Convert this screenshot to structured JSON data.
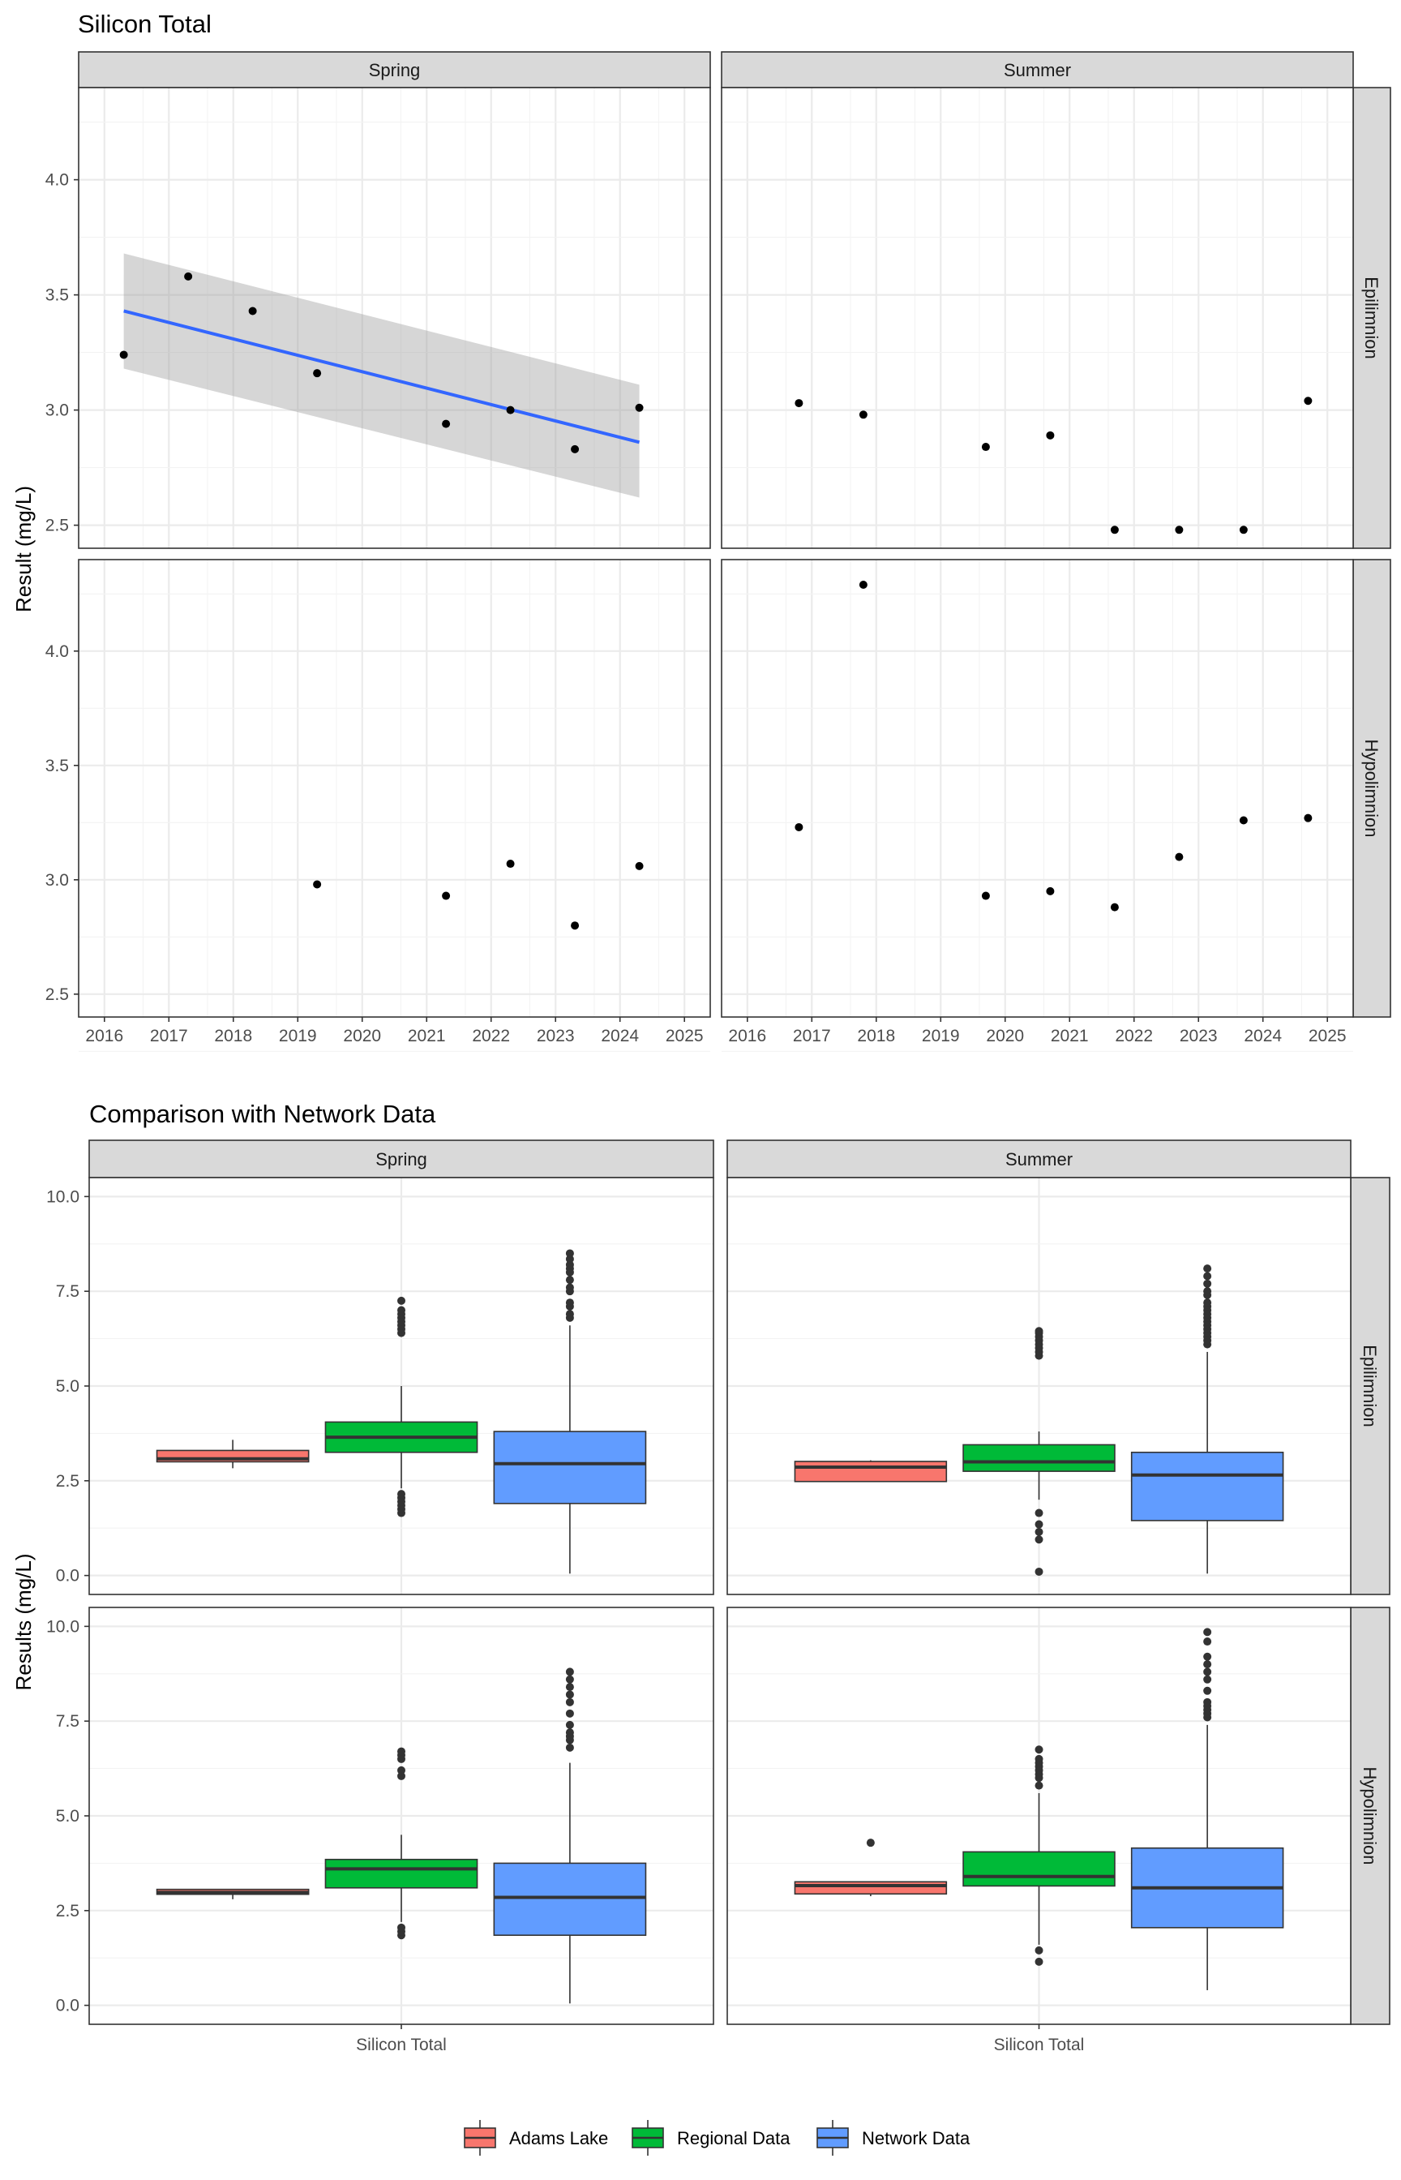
{
  "chart_data": [
    {
      "type": "scatter",
      "title": "Silicon Total",
      "ylabel": "Result (mg/L)",
      "xlabel": "",
      "col_facets": [
        "Spring",
        "Summer"
      ],
      "row_facets": [
        "Epilimnion",
        "Hypolimnion"
      ],
      "xlim": [
        2015.6,
        2025.4
      ],
      "ylim": [
        2.4,
        4.4
      ],
      "x_ticks": [
        2016,
        2017,
        2018,
        2019,
        2020,
        2021,
        2022,
        2023,
        2024,
        2025
      ],
      "y_ticks": [
        2.5,
        3.0,
        3.5,
        4.0
      ],
      "y_tick_labels": [
        "2.5",
        "3.0",
        "3.5",
        "4.0"
      ],
      "grid": true,
      "panels": [
        {
          "col": "Spring",
          "row": "Epilimnion",
          "points": [
            [
              2016.3,
              3.24
            ],
            [
              2017.3,
              3.58
            ],
            [
              2018.3,
              3.43
            ],
            [
              2019.3,
              3.16
            ],
            [
              2021.3,
              2.94
            ],
            [
              2022.3,
              3.0
            ],
            [
              2023.3,
              2.83
            ],
            [
              2024.3,
              3.01
            ]
          ],
          "trend": {
            "x": [
              2016.3,
              2024.3
            ],
            "y": [
              3.43,
              2.86
            ],
            "ci_lower": [
              3.18,
              2.62
            ],
            "ci_upper": [
              3.68,
              3.11
            ]
          }
        },
        {
          "col": "Summer",
          "row": "Epilimnion",
          "points": [
            [
              2016.8,
              3.03
            ],
            [
              2017.8,
              2.98
            ],
            [
              2019.7,
              2.84
            ],
            [
              2020.7,
              2.89
            ],
            [
              2021.7,
              2.48
            ],
            [
              2022.7,
              2.48
            ],
            [
              2023.7,
              2.48
            ],
            [
              2024.7,
              3.04
            ]
          ]
        },
        {
          "col": "Spring",
          "row": "Hypolimnion",
          "points": [
            [
              2019.3,
              2.98
            ],
            [
              2021.3,
              2.93
            ],
            [
              2022.3,
              3.07
            ],
            [
              2023.3,
              2.8
            ],
            [
              2024.3,
              3.06
            ]
          ]
        },
        {
          "col": "Summer",
          "row": "Hypolimnion",
          "points": [
            [
              2016.8,
              3.23
            ],
            [
              2017.8,
              4.29
            ],
            [
              2019.7,
              2.93
            ],
            [
              2020.7,
              2.95
            ],
            [
              2021.7,
              2.88
            ],
            [
              2022.7,
              3.1
            ],
            [
              2023.7,
              3.26
            ],
            [
              2024.7,
              3.27
            ]
          ]
        }
      ]
    },
    {
      "type": "box",
      "title": "Comparison with Network Data",
      "ylabel": "Results (mg/L)",
      "categories": [
        "Silicon Total"
      ],
      "col_facets": [
        "Spring",
        "Summer"
      ],
      "row_facets": [
        "Epilimnion",
        "Hypolimnion"
      ],
      "ylim": [
        -0.5,
        10.5
      ],
      "y_ticks": [
        0,
        2.5,
        5,
        7.5,
        10
      ],
      "y_tick_labels": [
        "0.0",
        "2.5",
        "5.0",
        "7.5",
        "10.0"
      ],
      "grid": true,
      "legend": {
        "position": "bottom",
        "items": [
          {
            "name": "Adams Lake",
            "color": "#F8766D"
          },
          {
            "name": "Regional Data",
            "color": "#00BA38"
          },
          {
            "name": "Network Data",
            "color": "#619CFF"
          }
        ]
      },
      "panels": [
        {
          "col": "Spring",
          "row": "Epilimnion",
          "boxes": [
            {
              "series": "Adams Lake",
              "min": 2.83,
              "q1": 3.0,
              "median": 3.08,
              "q3": 3.3,
              "max": 3.58,
              "outliers": []
            },
            {
              "series": "Regional Data",
              "min": 2.3,
              "q1": 3.25,
              "median": 3.65,
              "q3": 4.05,
              "max": 5.0,
              "outliers": [
                1.65,
                1.75,
                1.85,
                1.95,
                2.05,
                2.15,
                6.4,
                6.5,
                6.6,
                6.7,
                6.8,
                6.9,
                7.0,
                7.25
              ]
            },
            {
              "series": "Network Data",
              "min": 0.05,
              "q1": 1.9,
              "median": 2.95,
              "q3": 3.8,
              "max": 6.6,
              "outliers": [
                6.8,
                6.9,
                7.1,
                7.2,
                7.5,
                7.6,
                7.8,
                8.0,
                8.1,
                8.2,
                8.35,
                8.5
              ]
            }
          ]
        },
        {
          "col": "Summer",
          "row": "Epilimnion",
          "boxes": [
            {
              "series": "Adams Lake",
              "min": 2.48,
              "q1": 2.48,
              "median": 2.86,
              "q3": 3.01,
              "max": 3.04,
              "outliers": []
            },
            {
              "series": "Regional Data",
              "min": 2.0,
              "q1": 2.75,
              "median": 3.0,
              "q3": 3.45,
              "max": 3.8,
              "outliers": [
                0.1,
                0.95,
                1.15,
                1.35,
                1.65,
                5.8,
                5.9,
                6.0,
                6.1,
                6.2,
                6.3,
                6.4,
                6.45
              ]
            },
            {
              "series": "Network Data",
              "min": 0.05,
              "q1": 1.45,
              "median": 2.65,
              "q3": 3.25,
              "max": 5.9,
              "outliers": [
                6.1,
                6.2,
                6.3,
                6.4,
                6.5,
                6.6,
                6.7,
                6.8,
                6.9,
                7.0,
                7.1,
                7.2,
                7.4,
                7.5,
                7.7,
                7.9,
                8.1
              ]
            }
          ]
        },
        {
          "col": "Spring",
          "row": "Hypolimnion",
          "boxes": [
            {
              "series": "Adams Lake",
              "min": 2.8,
              "q1": 2.93,
              "median": 2.98,
              "q3": 3.06,
              "max": 3.07,
              "outliers": []
            },
            {
              "series": "Regional Data",
              "min": 2.2,
              "q1": 3.1,
              "median": 3.6,
              "q3": 3.85,
              "max": 4.5,
              "outliers": [
                1.85,
                1.95,
                2.05,
                6.05,
                6.2,
                6.5,
                6.6,
                6.7
              ]
            },
            {
              "series": "Network Data",
              "min": 0.05,
              "q1": 1.85,
              "median": 2.85,
              "q3": 3.75,
              "max": 6.4,
              "outliers": [
                6.8,
                7.0,
                7.1,
                7.2,
                7.4,
                7.7,
                8.0,
                8.2,
                8.4,
                8.6,
                8.8
              ]
            }
          ]
        },
        {
          "col": "Summer",
          "row": "Hypolimnion",
          "boxes": [
            {
              "series": "Adams Lake",
              "min": 2.88,
              "q1": 2.94,
              "median": 3.16,
              "q3": 3.26,
              "max": 3.27,
              "outliers": [
                4.29
              ]
            },
            {
              "series": "Regional Data",
              "min": 1.6,
              "q1": 3.15,
              "median": 3.4,
              "q3": 4.05,
              "max": 5.6,
              "outliers": [
                1.15,
                1.45,
                5.8,
                6.0,
                6.1,
                6.2,
                6.3,
                6.4,
                6.5,
                6.75
              ]
            },
            {
              "series": "Network Data",
              "min": 0.4,
              "q1": 2.05,
              "median": 3.1,
              "q3": 4.15,
              "max": 7.4,
              "outliers": [
                7.6,
                7.7,
                7.8,
                7.9,
                8.0,
                8.3,
                8.6,
                8.8,
                9.0,
                9.2,
                9.6,
                9.85
              ]
            }
          ]
        }
      ]
    }
  ]
}
